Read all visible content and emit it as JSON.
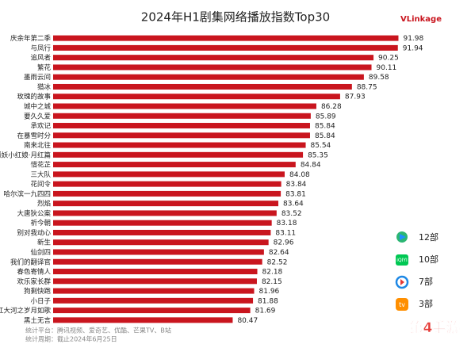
{
  "chart_data": {
    "type": "hbar",
    "title": "2024年H1剧集网络播放指数Top30",
    "categories": [
      "庆余年第二季",
      "与凤行",
      "追风者",
      "繁花",
      "墨雨云间",
      "猎冰",
      "玫瑰的故事",
      "城中之城",
      "要久久爱",
      "承欢记",
      "在暴雪时分",
      "南来北往",
      "狐妖小红娘·月红篇",
      "惜花芷",
      "三大队",
      "花间令",
      "哈尔滨一九四四",
      "烈焰",
      "大唐狄公案",
      "祈今朝",
      "别对我动心",
      "新生",
      "仙剑四",
      "我们的翻译官",
      "春色寄情人",
      "欢乐家长群",
      "狗剩快跑",
      "小日子",
      "大江大河之岁月如歌",
      "黑土无言"
    ],
    "values": [
      91.98,
      91.94,
      90.25,
      90.11,
      89.58,
      88.75,
      87.93,
      86.28,
      85.89,
      85.84,
      85.84,
      85.54,
      85.35,
      84.84,
      84.08,
      83.84,
      83.81,
      83.64,
      83.52,
      83.18,
      83.11,
      82.96,
      82.64,
      82.52,
      82.18,
      82.15,
      81.96,
      81.88,
      81.69,
      80.47
    ],
    "color": "#c9151e",
    "xlim": [
      68,
      93
    ]
  },
  "logo": "VLinkage",
  "legend": [
    "12部",
    "10部",
    "7部",
    "3部"
  ],
  "footer": [
    "统计平台：腾讯视频、爱奇艺、优酷、芒果TV、B站",
    "统计周期：截止2024年6月25日"
  ],
  "watermark": "第4手游"
}
